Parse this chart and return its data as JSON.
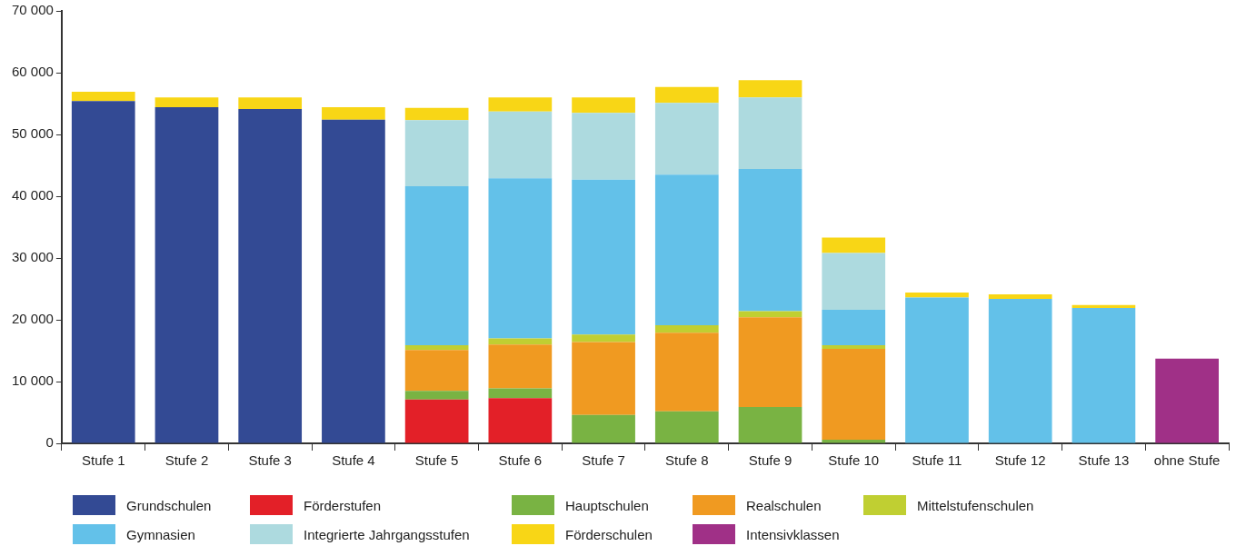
{
  "chart_data": {
    "type": "bar",
    "stacked": true,
    "legend": "bottom",
    "grid": false,
    "categories": [
      "Stufe 1",
      "Stufe 2",
      "Stufe 3",
      "Stufe 4",
      "Stufe 5",
      "Stufe 6",
      "Stufe 7",
      "Stufe 8",
      "Stufe 9",
      "Stufe 10",
      "Stufe 11",
      "Stufe 12",
      "Stufe 13",
      "ohne Stufe"
    ],
    "ylim": [
      0,
      70000
    ],
    "yticks": [
      {
        "value": 0,
        "label": "0"
      },
      {
        "value": 10000,
        "label": "10 000"
      },
      {
        "value": 20000,
        "label": "20 000"
      },
      {
        "value": 30000,
        "label": "30 000"
      },
      {
        "value": 40000,
        "label": "40 000"
      },
      {
        "value": 50000,
        "label": "50 000"
      },
      {
        "value": 60000,
        "label": "60 000"
      },
      {
        "value": 70000,
        "label": "70 000"
      }
    ],
    "series": [
      {
        "name": "Grundschulen",
        "color": "#334a94",
        "values": [
          55400,
          54400,
          54100,
          52400,
          null,
          null,
          null,
          null,
          null,
          null,
          null,
          null,
          null,
          null
        ]
      },
      {
        "name": "Förderstufen",
        "color": "#e32028",
        "values": [
          null,
          null,
          null,
          null,
          7100,
          7300,
          null,
          null,
          null,
          null,
          null,
          null,
          null,
          null
        ]
      },
      {
        "name": "Hauptschulen",
        "color": "#79b343",
        "values": [
          null,
          null,
          null,
          null,
          1400,
          1600,
          4600,
          5200,
          5900,
          600,
          null,
          null,
          null,
          null
        ]
      },
      {
        "name": "Realschulen",
        "color": "#f09a21",
        "values": [
          null,
          null,
          null,
          null,
          6600,
          7100,
          11800,
          12700,
          14500,
          14700,
          null,
          null,
          null,
          null
        ]
      },
      {
        "name": "Mittelstufenschulen",
        "color": "#c0cf32",
        "values": [
          null,
          null,
          null,
          null,
          800,
          1000,
          1200,
          1200,
          1000,
          600,
          null,
          null,
          null,
          null
        ]
      },
      {
        "name": "Gymnasien",
        "color": "#63c1e9",
        "values": [
          null,
          null,
          null,
          null,
          25700,
          25900,
          25100,
          24400,
          23000,
          5700,
          23600,
          23400,
          21900,
          null
        ]
      },
      {
        "name": "Integrierte Jahrgangsstufen",
        "color": "#addadf",
        "values": [
          null,
          null,
          null,
          null,
          10700,
          10800,
          10800,
          11600,
          11600,
          9200,
          null,
          null,
          null,
          null
        ]
      },
      {
        "name": "Förderschulen",
        "color": "#f8d616",
        "values": [
          1500,
          1600,
          1900,
          2000,
          2000,
          2300,
          2500,
          2600,
          2800,
          2500,
          800,
          700,
          500,
          null
        ]
      },
      {
        "name": "Intensivklassen",
        "color": "#a03087",
        "values": [
          null,
          null,
          null,
          null,
          null,
          null,
          null,
          null,
          null,
          null,
          null,
          null,
          null,
          13700
        ]
      }
    ]
  }
}
